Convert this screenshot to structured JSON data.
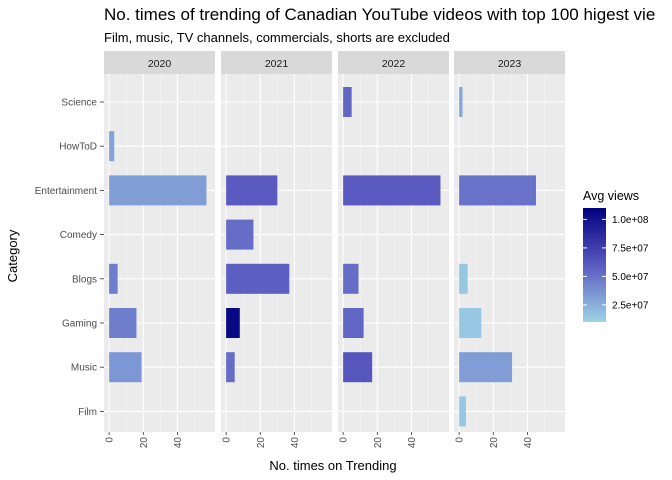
{
  "chart_data": {
    "type": "bar",
    "orientation": "horizontal",
    "faceted_by": "year",
    "title": "No. times of trending of Canadian YouTube videos with top 100 higest vie",
    "subtitle": "Film, music, TV channels, commercials, shorts are excluded",
    "xlabel": "No. times on Trending",
    "ylabel": "Category",
    "xlim": [
      -3,
      62
    ],
    "x_ticks": [
      "0",
      "20",
      "40"
    ],
    "x_tick_values": [
      0,
      20,
      40
    ],
    "categories": [
      "Science",
      "HowToD",
      "Entertainment",
      "Comedy",
      "Blogs",
      "Gaming",
      "Music",
      "Film"
    ],
    "facets": [
      {
        "label": "2020",
        "values": [
          0,
          3,
          57,
          0,
          5,
          16,
          19,
          0
        ],
        "avg_views": [
          null,
          30000000,
          32000000,
          null,
          45000000,
          45000000,
          35000000,
          null
        ]
      },
      {
        "label": "2021",
        "values": [
          0,
          0,
          30,
          16,
          37,
          8,
          5,
          0
        ],
        "avg_views": [
          null,
          null,
          60000000,
          52000000,
          58000000,
          105000000,
          52000000,
          null
        ]
      },
      {
        "label": "2022",
        "values": [
          5,
          0,
          57,
          0,
          9,
          12,
          17,
          0
        ],
        "avg_views": [
          55000000,
          null,
          60000000,
          null,
          52000000,
          55000000,
          62000000,
          null
        ]
      },
      {
        "label": "2023",
        "values": [
          2,
          0,
          45,
          0,
          5,
          13,
          31,
          4
        ],
        "avg_views": [
          28000000,
          null,
          50000000,
          null,
          15000000,
          15000000,
          32000000,
          15000000
        ]
      }
    ],
    "legend": {
      "title": "Avg views",
      "position": "right",
      "labels": [
        "1.0e+08",
        "7.5e+07",
        "5.0e+07",
        "2.5e+07"
      ],
      "label_values": [
        100000000,
        75000000,
        50000000,
        25000000
      ],
      "range": [
        10000000,
        110000000
      ],
      "color_low": "#9ED3E6",
      "color_high": "#00007F"
    },
    "grid": true,
    "panel_background": "#EBEBEB",
    "strip_background": "#D9D9D9"
  }
}
